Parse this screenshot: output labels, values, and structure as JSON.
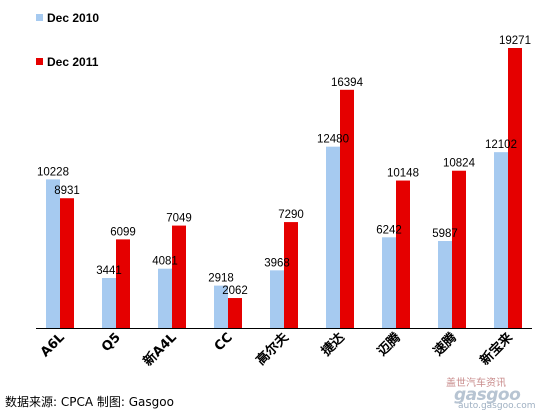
{
  "chart_data": {
    "type": "bar",
    "categories": [
      "A6L",
      "Q5",
      "新A4L",
      "CC",
      "高尔夫",
      "捷达",
      "迈腾",
      "速腾",
      "新宝来"
    ],
    "series": [
      {
        "name": "Dec 2010",
        "color": "#a6caf0",
        "values": [
          10228,
          3441,
          4081,
          2918,
          3968,
          12480,
          6242,
          5987,
          12102
        ]
      },
      {
        "name": "Dec 2011",
        "color": "#e50000",
        "values": [
          8931,
          6099,
          7049,
          2062,
          7290,
          16394,
          10148,
          10824,
          19271
        ]
      }
    ],
    "ylim": [
      0,
      19271
    ],
    "legend": "top-left",
    "grid": false
  },
  "source_text": "数据来源: CPCA  制图: Gasgoo",
  "watermark": {
    "cn": "盖世汽车资讯",
    "logo": "gasgoo",
    "url": "auto.gasgoo.com"
  }
}
